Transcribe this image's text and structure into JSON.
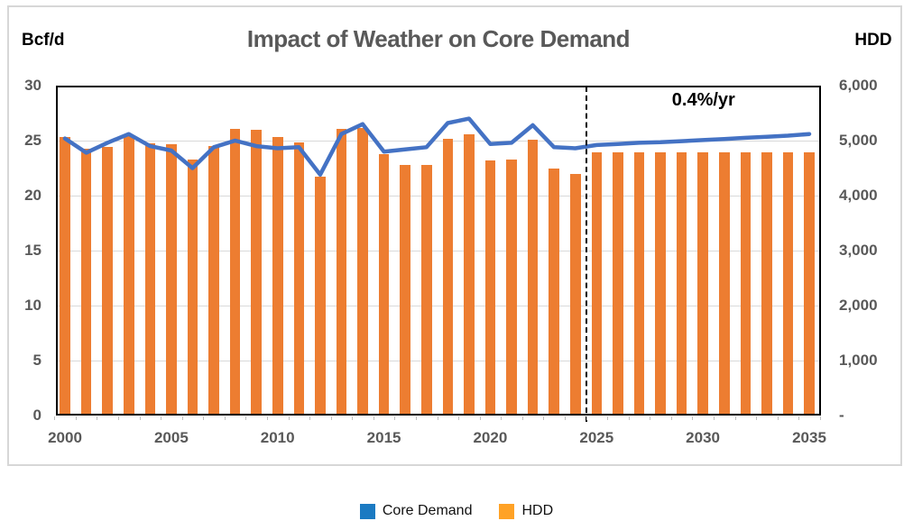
{
  "chart_data": {
    "type": "bar",
    "subtype": "combo-bar-line-dual-axis",
    "title": "Impact of Weather on Core Demand",
    "x": [
      2000,
      2001,
      2002,
      2003,
      2004,
      2005,
      2006,
      2007,
      2008,
      2009,
      2010,
      2011,
      2012,
      2013,
      2014,
      2015,
      2016,
      2017,
      2018,
      2019,
      2020,
      2021,
      2022,
      2023,
      2024,
      2025,
      2026,
      2027,
      2028,
      2029,
      2030,
      2031,
      2032,
      2033,
      2034,
      2035
    ],
    "series": [
      {
        "name": "Core Demand",
        "type": "line",
        "axis": "left",
        "color": "#4472C4",
        "values": [
          25.2,
          23.9,
          24.8,
          25.6,
          24.5,
          24.1,
          22.5,
          24.4,
          25.0,
          24.5,
          24.3,
          24.4,
          21.9,
          25.6,
          26.5,
          24.0,
          24.2,
          24.4,
          26.6,
          27.0,
          24.7,
          24.8,
          26.4,
          24.4,
          24.3,
          24.6,
          24.7,
          24.8,
          24.85,
          24.95,
          25.05,
          25.15,
          25.25,
          25.35,
          25.45,
          25.6
        ]
      },
      {
        "name": "HDD",
        "type": "bar",
        "axis": "right",
        "color": "#ED7D31",
        "values": [
          5060,
          4850,
          4890,
          5080,
          4950,
          4930,
          4650,
          4900,
          5220,
          5190,
          5070,
          4970,
          4350,
          5210,
          5230,
          4760,
          4550,
          4560,
          5040,
          5120,
          4640,
          4650,
          5020,
          4500,
          4400,
          4780,
          4780,
          4780,
          4780,
          4780,
          4780,
          4780,
          4780,
          4780,
          4780,
          4780
        ]
      }
    ],
    "left_axis": {
      "label": "Bcf/d",
      "min": 0,
      "max": 30,
      "tick_values": [
        30,
        25,
        20,
        15,
        10,
        5,
        0
      ],
      "tick_labels": [
        "30",
        "25",
        "20",
        "15",
        "10",
        "5",
        "0"
      ]
    },
    "right_axis": {
      "label": "HDD",
      "min": 0,
      "max": 6000,
      "tick_values": [
        6000,
        5000,
        4000,
        3000,
        2000,
        1000,
        0
      ],
      "tick_labels": [
        "6,000",
        "5,000",
        "4,000",
        "3,000",
        "2,000",
        "1,000",
        "-"
      ]
    },
    "x_tick_labels": [
      "2000",
      "2005",
      "2010",
      "2015",
      "2020",
      "2025",
      "2030",
      "2035"
    ],
    "grid": true,
    "grid_color": "#D9D9D9",
    "annotation": {
      "text": "0.4%/yr"
    },
    "forecast_divider_year": 2024.5,
    "legend_position": "bottom",
    "legend": {
      "items": [
        {
          "label": "Core Demand",
          "color": "#1B7AC2"
        },
        {
          "label": "HDD",
          "color": "#FFA226"
        }
      ]
    }
  }
}
